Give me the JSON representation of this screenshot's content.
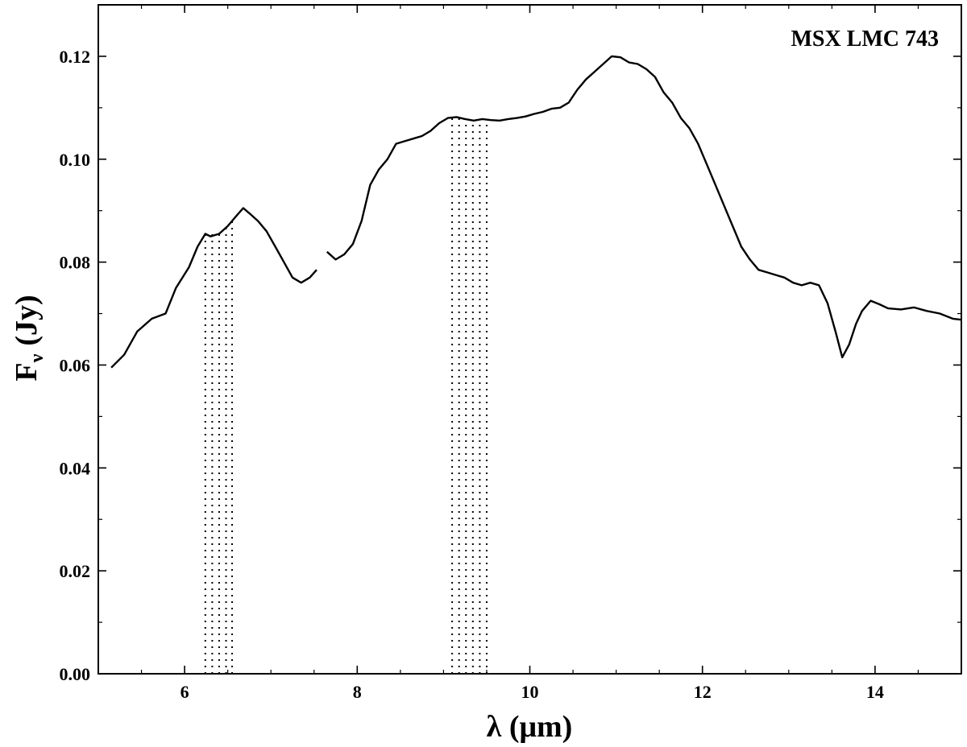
{
  "chart_data": {
    "type": "line",
    "title": "",
    "annotation": "MSX LMC 743",
    "xlabel": "λ (μm)",
    "ylabel_main": "F",
    "ylabel_sub": "ν",
    "ylabel_unit": "(Jy)",
    "xlim": [
      5.0,
      15.0
    ],
    "ylim": [
      0.0,
      0.13
    ],
    "xticks": [
      6,
      8,
      10,
      12,
      14
    ],
    "xtick_labels": [
      "6",
      "8",
      "10",
      "12",
      "14"
    ],
    "yticks": [
      0.0,
      0.02,
      0.04,
      0.06,
      0.08,
      0.1,
      0.12
    ],
    "ytick_labels": [
      "0.00",
      "0.02",
      "0.04",
      "0.06",
      "0.08",
      "0.10",
      "0.12"
    ],
    "grid": false,
    "line_color": "#000000",
    "series": [
      {
        "segment": 1,
        "x": [
          5.15,
          5.3,
          5.45,
          5.62,
          5.78,
          5.9,
          6.05,
          6.15,
          6.24,
          6.3,
          6.4,
          6.5,
          6.6,
          6.68,
          6.75,
          6.85,
          6.95,
          7.05,
          7.15,
          7.25,
          7.35,
          7.45,
          7.53
        ],
        "y": [
          0.0595,
          0.062,
          0.0665,
          0.069,
          0.07,
          0.075,
          0.079,
          0.083,
          0.0855,
          0.085,
          0.0855,
          0.087,
          0.089,
          0.0905,
          0.0895,
          0.088,
          0.086,
          0.083,
          0.08,
          0.077,
          0.076,
          0.077,
          0.0785
        ]
      },
      {
        "segment": 2,
        "x": [
          7.65,
          7.75,
          7.85,
          7.95,
          8.05,
          8.15,
          8.25,
          8.35,
          8.45,
          8.55,
          8.65,
          8.75,
          8.85,
          8.95,
          9.05,
          9.15,
          9.25,
          9.35,
          9.45,
          9.55,
          9.65,
          9.75,
          9.85,
          9.95,
          10.05,
          10.15,
          10.25,
          10.35,
          10.45,
          10.55,
          10.65,
          10.75,
          10.85,
          10.95,
          11.05,
          11.15,
          11.25,
          11.35,
          11.45,
          11.55,
          11.65,
          11.75,
          11.85,
          11.95,
          12.05,
          12.15,
          12.25,
          12.35,
          12.45,
          12.55,
          12.65,
          12.75,
          12.85,
          12.95,
          13.05,
          13.15,
          13.25,
          13.35,
          13.45,
          13.55,
          13.62,
          13.7,
          13.78,
          13.85,
          13.95,
          14.05,
          14.15,
          14.3,
          14.45,
          14.6,
          14.75,
          14.9,
          15.0
        ],
        "y": [
          0.082,
          0.0805,
          0.0815,
          0.0835,
          0.088,
          0.095,
          0.098,
          0.1,
          0.103,
          0.1035,
          0.104,
          0.1045,
          0.1055,
          0.107,
          0.108,
          0.1082,
          0.1078,
          0.1075,
          0.1078,
          0.1076,
          0.1075,
          0.1078,
          0.108,
          0.1083,
          0.1088,
          0.1092,
          0.1098,
          0.11,
          0.111,
          0.1135,
          0.1155,
          0.117,
          0.1185,
          0.12,
          0.1198,
          0.1188,
          0.1185,
          0.1175,
          0.116,
          0.113,
          0.111,
          0.108,
          0.106,
          0.103,
          0.099,
          0.095,
          0.091,
          0.087,
          0.083,
          0.0805,
          0.0785,
          0.078,
          0.0775,
          0.077,
          0.076,
          0.0755,
          0.076,
          0.0755,
          0.072,
          0.066,
          0.0615,
          0.064,
          0.068,
          0.0705,
          0.0725,
          0.0718,
          0.071,
          0.0708,
          0.0712,
          0.0705,
          0.07,
          0.069,
          0.0688
        ]
      }
    ],
    "dotted_bands": [
      {
        "x": [
          6.24,
          6.32,
          6.4,
          6.48,
          6.55
        ],
        "top": [
          0.0855,
          0.0855,
          0.086,
          0.087,
          0.0885
        ]
      },
      {
        "x": [
          9.1,
          9.18,
          9.26,
          9.34,
          9.42,
          9.5
        ],
        "top": [
          0.108,
          0.1082,
          0.1078,
          0.1075,
          0.1076,
          0.1078
        ]
      }
    ]
  }
}
